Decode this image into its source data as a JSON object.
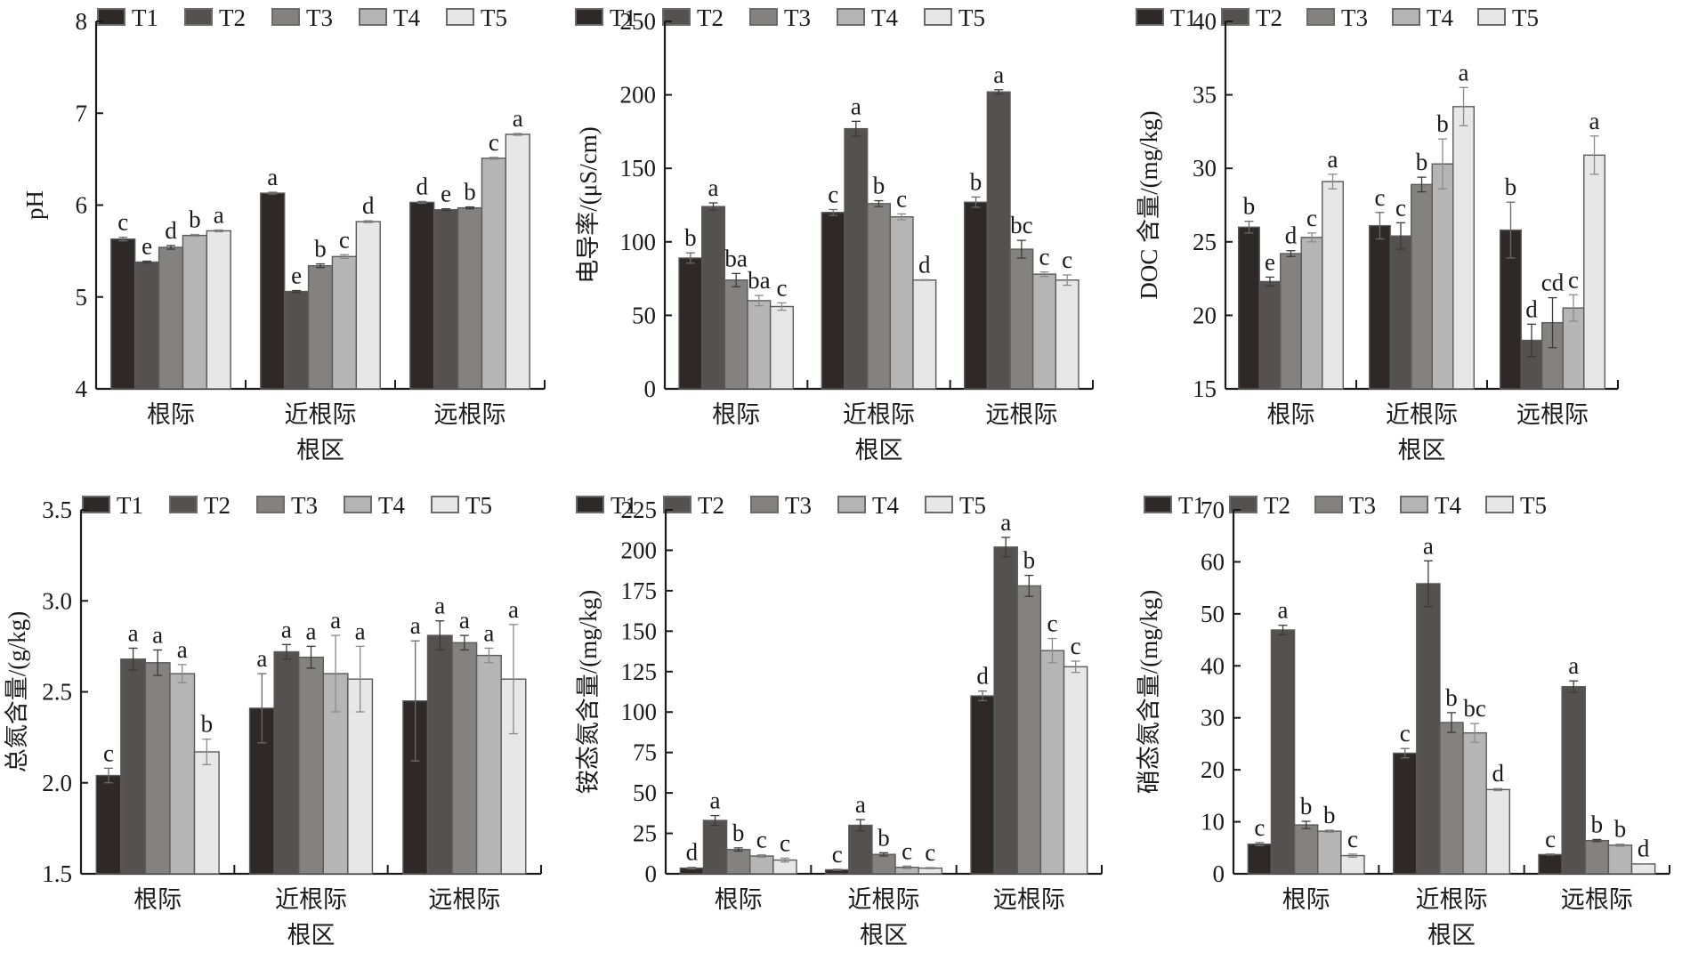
{
  "legend": [
    "T1",
    "T2",
    "T3",
    "T4",
    "T5"
  ],
  "series_colors": [
    "#2e2927",
    "#545150",
    "#838281",
    "#b4b5b4",
    "#e6e7e6"
  ],
  "chart_data": [
    {
      "id": "ph",
      "type": "bar",
      "title": "",
      "ylabel": "pH",
      "xlabel": "根区",
      "categories": [
        "根际",
        "近根际",
        "远根际"
      ],
      "ylim": [
        4,
        8
      ],
      "yticks": [
        4,
        5,
        6,
        7,
        8
      ],
      "ytick_labels": [
        "4",
        "5",
        "6",
        "7",
        "8"
      ],
      "legend_position": "top",
      "series": [
        {
          "name": "T1",
          "values": [
            5.63,
            6.13,
            6.03
          ],
          "errors": [
            0.02,
            0.01,
            0.01
          ],
          "sig": [
            "c",
            "a",
            "d"
          ]
        },
        {
          "name": "T2",
          "values": [
            5.38,
            5.06,
            5.95
          ],
          "errors": [
            0.01,
            0.01,
            0.01
          ],
          "sig": [
            "e",
            "e",
            "e"
          ]
        },
        {
          "name": "T3",
          "values": [
            5.54,
            5.34,
            5.97
          ],
          "errors": [
            0.02,
            0.02,
            0.01
          ],
          "sig": [
            "d",
            "b",
            "b"
          ]
        },
        {
          "name": "T4",
          "values": [
            5.67,
            5.44,
            6.51
          ],
          "errors": [
            0.01,
            0.02,
            0.01
          ],
          "sig": [
            "b",
            "c",
            "c"
          ]
        },
        {
          "name": "T5",
          "values": [
            5.72,
            5.82,
            6.77
          ],
          "errors": [
            0.01,
            0.01,
            0.01
          ],
          "sig": [
            "a",
            "d",
            "a"
          ]
        }
      ]
    },
    {
      "id": "ec",
      "type": "bar",
      "title": "",
      "ylabel": "电导率/(μS/cm)",
      "xlabel": "根区",
      "categories": [
        "根际",
        "近根际",
        "远根际"
      ],
      "ylim": [
        0,
        250
      ],
      "yticks": [
        0,
        50,
        100,
        150,
        200,
        250
      ],
      "ytick_labels": [
        "0",
        "50",
        "100",
        "150",
        "200",
        "250"
      ],
      "legend_position": "top",
      "series": [
        {
          "name": "T1",
          "values": [
            89,
            120,
            127
          ],
          "errors": [
            3.5,
            2,
            3.5
          ],
          "sig": [
            "b",
            "c",
            "b"
          ]
        },
        {
          "name": "T2",
          "values": [
            124,
            177,
            202
          ],
          "errors": [
            2.5,
            5,
            1.5
          ],
          "sig": [
            "a",
            "a",
            "a"
          ]
        },
        {
          "name": "T3",
          "values": [
            74,
            126,
            95
          ],
          "errors": [
            4.5,
            2,
            6
          ],
          "sig": [
            "ba",
            "b",
            "bc"
          ]
        },
        {
          "name": "T4",
          "values": [
            60,
            117,
            78
          ],
          "errors": [
            3.5,
            2,
            1.5
          ],
          "sig": [
            "ba",
            "c",
            "c"
          ]
        },
        {
          "name": "T5",
          "values": [
            56,
            74,
            74
          ],
          "errors": [
            2.5,
            0.3,
            3.5
          ],
          "sig": [
            "c",
            "d",
            "c"
          ]
        }
      ]
    },
    {
      "id": "doc",
      "type": "bar",
      "title": "",
      "ylabel": "DOC 含量/(mg/kg)",
      "xlabel": "根区",
      "categories": [
        "根际",
        "近根际",
        "远根际"
      ],
      "ylim": [
        15,
        40
      ],
      "yticks": [
        15,
        20,
        25,
        30,
        35,
        40
      ],
      "ytick_labels": [
        "15",
        "20",
        "25",
        "30",
        "35",
        "40"
      ],
      "legend_position": "top",
      "series": [
        {
          "name": "T1",
          "values": [
            26.0,
            26.1,
            25.8
          ],
          "errors": [
            0.4,
            0.9,
            1.9
          ],
          "sig": [
            "b",
            "c",
            "b"
          ]
        },
        {
          "name": "T2",
          "values": [
            22.3,
            25.4,
            18.3
          ],
          "errors": [
            0.3,
            0.9,
            1.1
          ],
          "sig": [
            "e",
            "c",
            "d"
          ]
        },
        {
          "name": "T3",
          "values": [
            24.2,
            28.9,
            19.5
          ],
          "errors": [
            0.2,
            0.5,
            1.7
          ],
          "sig": [
            "d",
            "b",
            "cd"
          ]
        },
        {
          "name": "T4",
          "values": [
            25.3,
            30.3,
            20.5
          ],
          "errors": [
            0.3,
            1.7,
            0.9
          ],
          "sig": [
            "c",
            "b",
            "c"
          ]
        },
        {
          "name": "T5",
          "values": [
            29.1,
            34.2,
            30.9
          ],
          "errors": [
            0.5,
            1.3,
            1.3
          ],
          "sig": [
            "a",
            "a",
            "a"
          ]
        }
      ]
    },
    {
      "id": "tn",
      "type": "bar",
      "title": "",
      "ylabel": "总氮含量/(g/kg)",
      "xlabel": "根区",
      "categories": [
        "根际",
        "近根际",
        "远根际"
      ],
      "ylim": [
        1.5,
        3.5
      ],
      "yticks": [
        1.5,
        2.0,
        2.5,
        3.0,
        3.5
      ],
      "ytick_labels": [
        "1.5",
        "2.0",
        "2.5",
        "3.0",
        "3.5"
      ],
      "legend_position": "top",
      "series": [
        {
          "name": "T1",
          "values": [
            2.04,
            2.41,
            2.45
          ],
          "errors": [
            0.04,
            0.19,
            0.33
          ],
          "sig": [
            "c",
            "a",
            "a"
          ]
        },
        {
          "name": "T2",
          "values": [
            2.68,
            2.72,
            2.81
          ],
          "errors": [
            0.06,
            0.04,
            0.08
          ],
          "sig": [
            "a",
            "a",
            "a"
          ]
        },
        {
          "name": "T3",
          "values": [
            2.66,
            2.69,
            2.77
          ],
          "errors": [
            0.07,
            0.06,
            0.04
          ],
          "sig": [
            "a",
            "a",
            "a"
          ]
        },
        {
          "name": "T4",
          "values": [
            2.6,
            2.6,
            2.7
          ],
          "errors": [
            0.05,
            0.21,
            0.04
          ],
          "sig": [
            "a",
            "a",
            "a"
          ]
        },
        {
          "name": "T5",
          "values": [
            2.17,
            2.57,
            2.57
          ],
          "errors": [
            0.07,
            0.18,
            0.3
          ],
          "sig": [
            "b",
            "a",
            "a"
          ]
        }
      ]
    },
    {
      "id": "nh4",
      "type": "bar",
      "title": "",
      "ylabel": "铵态氮含量/(mg/kg)",
      "xlabel": "根区",
      "categories": [
        "根际",
        "近根际",
        "远根际"
      ],
      "ylim": [
        0,
        225
      ],
      "yticks": [
        0,
        25,
        50,
        75,
        100,
        125,
        150,
        175,
        200,
        225
      ],
      "ytick_labels": [
        "0",
        "25",
        "50",
        "75",
        "100",
        "125",
        "150",
        "175",
        "200",
        "225"
      ],
      "legend_position": "top",
      "series": [
        {
          "name": "T1",
          "values": [
            3.5,
            2.5,
            110
          ],
          "errors": [
            0.5,
            0.3,
            3
          ],
          "sig": [
            "d",
            "c",
            "d"
          ]
        },
        {
          "name": "T2",
          "values": [
            33,
            30,
            202
          ],
          "errors": [
            3,
            3.5,
            6
          ],
          "sig": [
            "a",
            "a",
            "a"
          ]
        },
        {
          "name": "T3",
          "values": [
            15,
            12,
            178
          ],
          "errors": [
            1,
            1,
            6.5
          ],
          "sig": [
            "b",
            "b",
            "b"
          ]
        },
        {
          "name": "T4",
          "values": [
            11,
            4,
            138
          ],
          "errors": [
            0.8,
            0.8,
            7.5
          ],
          "sig": [
            "c",
            "c",
            "c"
          ]
        },
        {
          "name": "T5",
          "values": [
            8.5,
            3.5,
            128
          ],
          "errors": [
            1.2,
            0.4,
            3.5
          ],
          "sig": [
            "c",
            "c",
            "c"
          ]
        }
      ]
    },
    {
      "id": "no3",
      "type": "bar",
      "title": "",
      "ylabel": "硝态氮含量/(mg/kg)",
      "xlabel": "根区",
      "categories": [
        "根际",
        "近根际",
        "远根际"
      ],
      "ylim": [
        0,
        70
      ],
      "yticks": [
        0,
        10,
        20,
        30,
        40,
        50,
        60,
        70
      ],
      "ytick_labels": [
        "0",
        "10",
        "20",
        "30",
        "40",
        "50",
        "60",
        "70"
      ],
      "legend_position": "top",
      "series": [
        {
          "name": "T1",
          "values": [
            5.7,
            23.2,
            3.7
          ],
          "errors": [
            0.3,
            0.9,
            0.1
          ],
          "sig": [
            "c",
            "c",
            "c"
          ]
        },
        {
          "name": "T2",
          "values": [
            46.9,
            55.8,
            36.0
          ],
          "errors": [
            0.9,
            4.4,
            1.1
          ],
          "sig": [
            "a",
            "a",
            "a"
          ]
        },
        {
          "name": "T3",
          "values": [
            9.4,
            29.1,
            6.4
          ],
          "errors": [
            0.7,
            1.9,
            0.2
          ],
          "sig": [
            "b",
            "b",
            "b"
          ]
        },
        {
          "name": "T4",
          "values": [
            8.2,
            27.1,
            5.5
          ],
          "errors": [
            0.2,
            1.8,
            0.2
          ],
          "sig": [
            "b",
            "bc",
            "b"
          ]
        },
        {
          "name": "T5",
          "values": [
            3.5,
            16.2,
            1.9
          ],
          "errors": [
            0.3,
            0.2,
            0.05
          ],
          "sig": [
            "c",
            "d",
            "d"
          ]
        }
      ]
    }
  ]
}
